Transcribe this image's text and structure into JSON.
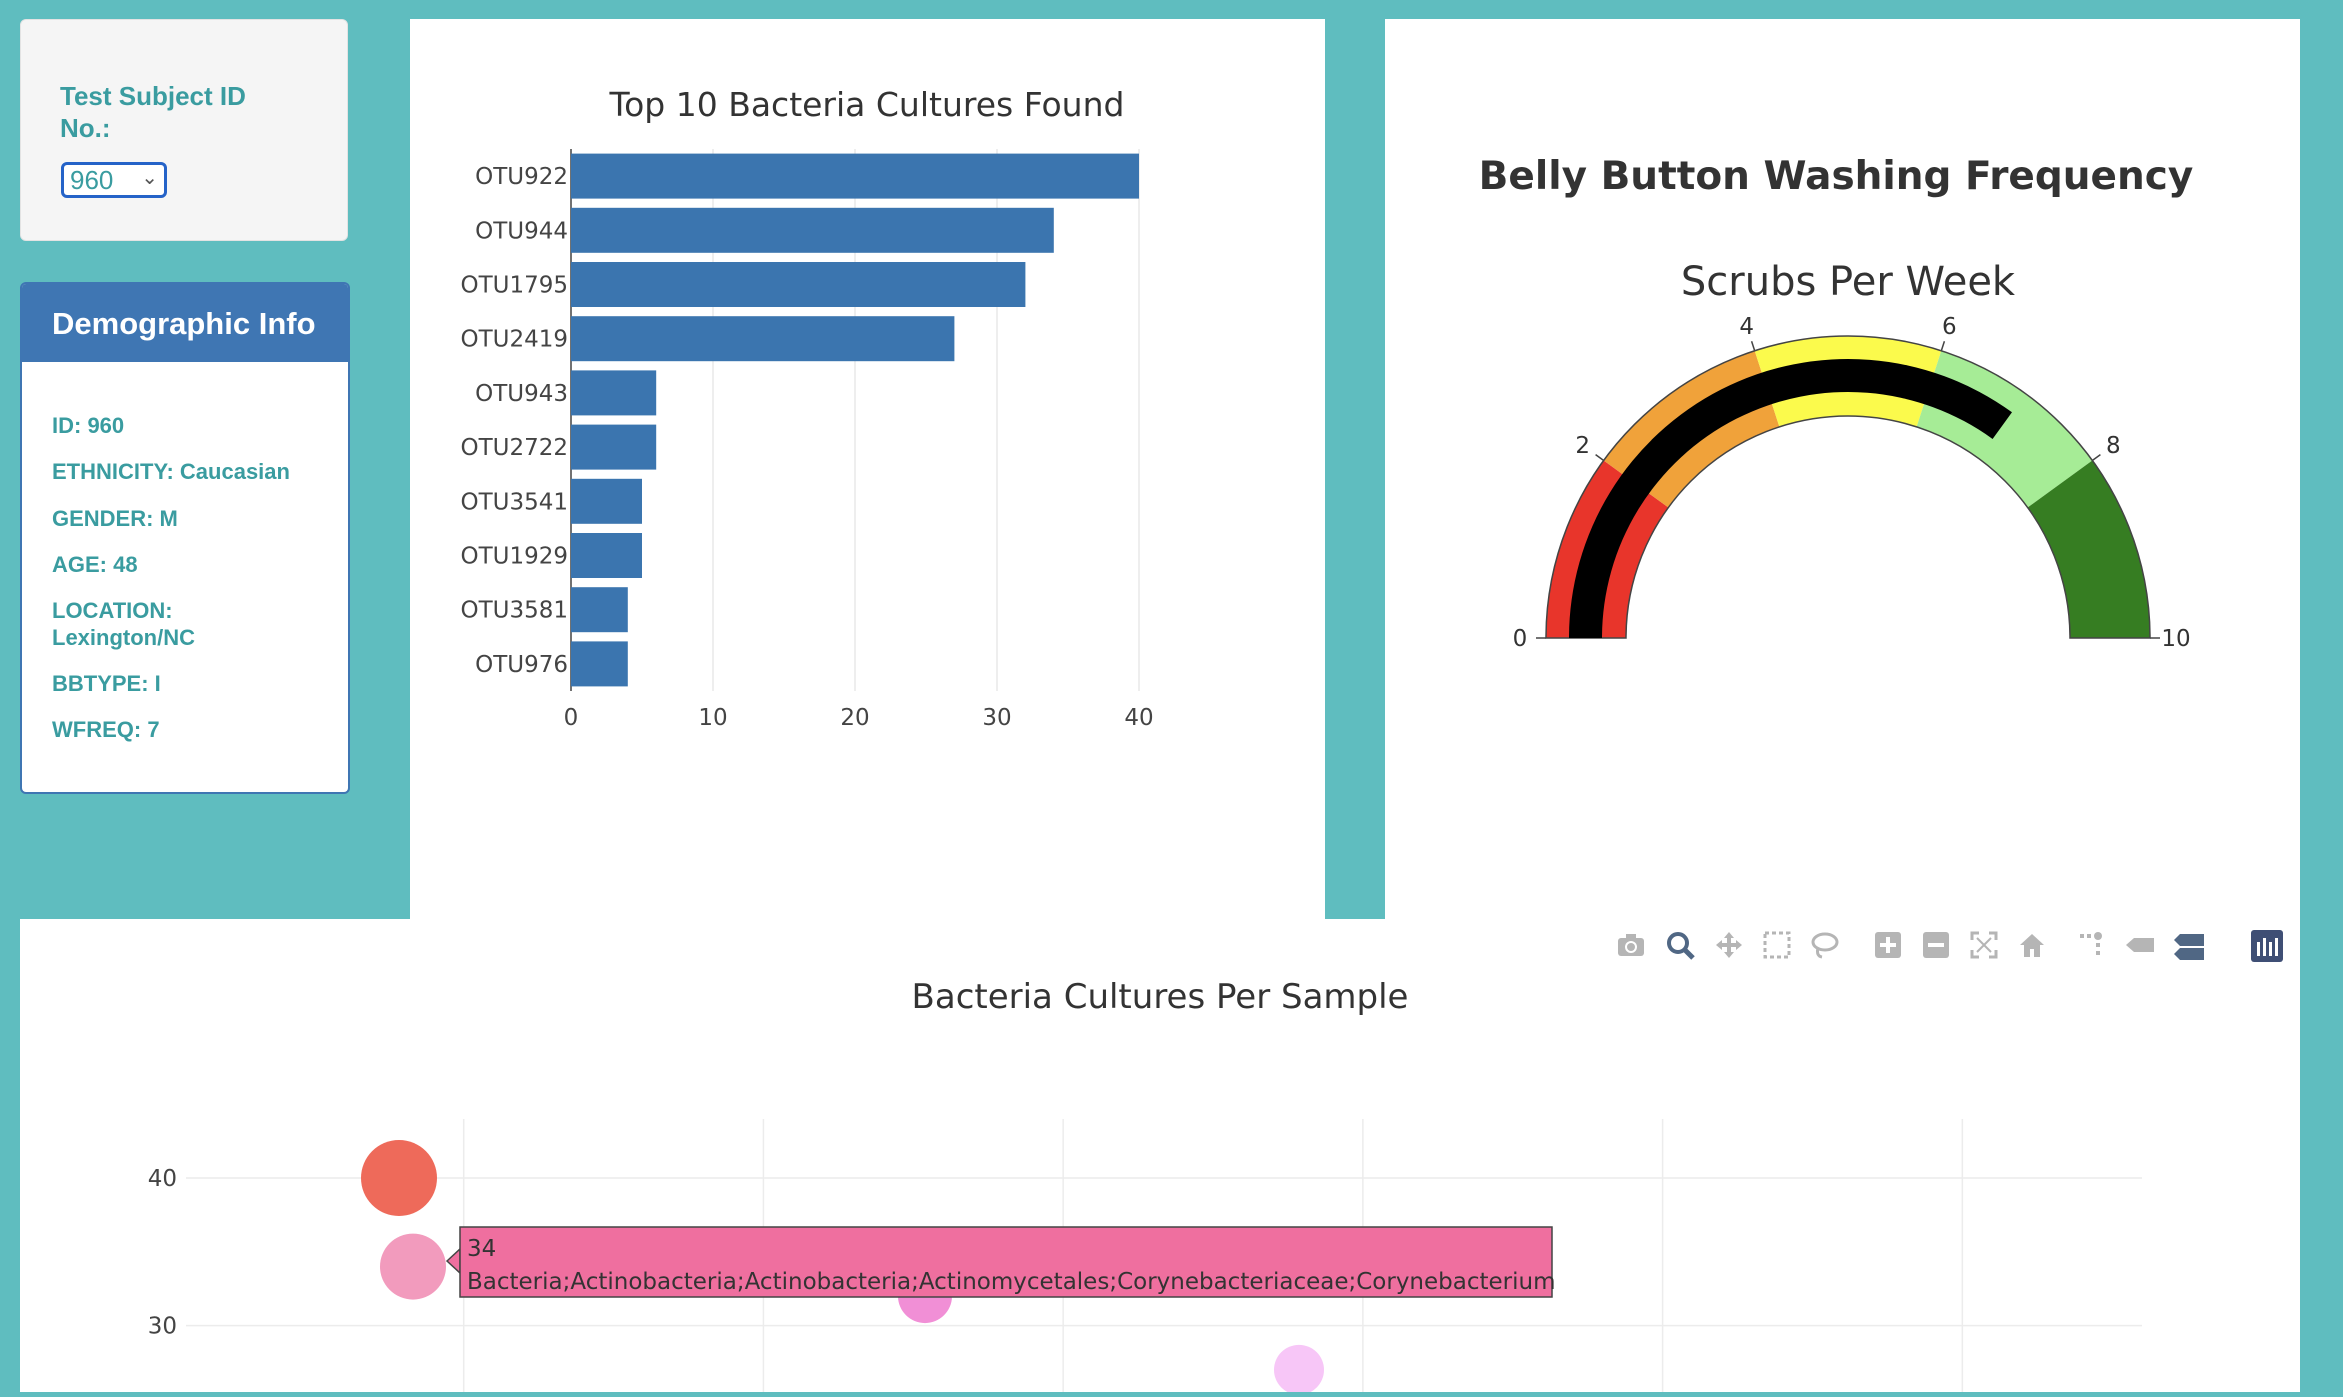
{
  "selector": {
    "label": "Test Subject ID No.:",
    "selected": "960"
  },
  "demographics": {
    "title": "Demographic Info",
    "lines": [
      "ID: 960",
      "ETHNICITY: Caucasian",
      "GENDER: M",
      "AGE: 48",
      "LOCATION: Lexington/NC",
      "BBTYPE: I",
      "WFREQ: 7"
    ]
  },
  "bar_chart": {
    "title": "Top 10 Bacteria Cultures Found"
  },
  "gauge": {
    "title": "Belly Button Washing Frequency",
    "subtitle": "Scrubs Per Week"
  },
  "bubble": {
    "title": "Bacteria Cultures Per Sample",
    "tooltip": {
      "value": "34",
      "label": "Bacteria;Actinobacteria;Actinobacteria;Actinomycetales;Corynebacteriaceae;Corynebacterium"
    }
  },
  "modebar": {
    "icons": [
      "camera-icon",
      "zoom-icon",
      "pan-icon",
      "box-select-icon",
      "lasso-icon",
      "zoom-in-icon",
      "zoom-out-icon",
      "autoscale-icon",
      "reset-axes-icon",
      "spike-lines-icon",
      "hover-closest-icon",
      "hover-compare-icon",
      "plotly-logo-icon"
    ]
  },
  "colors": {
    "background": "#5fbdbf",
    "bar": "#3b75af",
    "accent_text": "#3a9ca0",
    "gauge_bar": "#000000",
    "tooltip_bg": "#ef6f9f"
  },
  "chart_data": [
    {
      "type": "bar",
      "orientation": "horizontal",
      "title": "Top 10 Bacteria Cultures Found",
      "categories": [
        "OTU922",
        "OTU944",
        "OTU1795",
        "OTU2419",
        "OTU943",
        "OTU2722",
        "OTU3541",
        "OTU1929",
        "OTU3581",
        "OTU976"
      ],
      "values": [
        40,
        34,
        32,
        27,
        6,
        6,
        5,
        5,
        4,
        4
      ],
      "xticks": [
        0,
        10,
        20,
        30,
        40
      ],
      "xlim": [
        0,
        44
      ],
      "grid": true
    },
    {
      "type": "gauge",
      "title": "Belly Button Washing Frequency",
      "subtitle": "Scrubs Per Week",
      "value": 7,
      "range": [
        0,
        10
      ],
      "ticks": [
        0,
        2,
        4,
        6,
        8,
        10
      ],
      "steps": [
        {
          "range": [
            0,
            2
          ],
          "color": "#e8352b"
        },
        {
          "range": [
            2,
            4
          ],
          "color": "#f0a23a"
        },
        {
          "range": [
            4,
            6
          ],
          "color": "#fbfa4c"
        },
        {
          "range": [
            6,
            8
          ],
          "color": "#a6ec96"
        },
        {
          "range": [
            8,
            10
          ],
          "color": "#367d22"
        }
      ]
    },
    {
      "type": "scatter",
      "subtype": "bubble",
      "title": "Bacteria Cultures Per Sample",
      "yticks": [
        30,
        40
      ],
      "ylim": [
        25.5,
        44
      ],
      "xlim": [
        0,
        3600
      ],
      "points": [
        {
          "x": 922,
          "y": 40,
          "color": "#ee6a5a"
        },
        {
          "x": 944,
          "y": 34,
          "color": "#f29bbd"
        },
        {
          "x": 1795,
          "y": 32,
          "color": "#f18fd6"
        },
        {
          "x": 2419,
          "y": 27,
          "color": "#f7c6f7"
        }
      ],
      "grid": true
    }
  ]
}
